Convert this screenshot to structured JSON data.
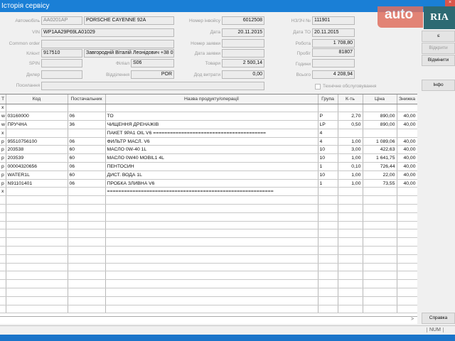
{
  "window": {
    "title": "Історія сервісу",
    "close": "×"
  },
  "form": {
    "car_label": "Автомобіль",
    "car_plate": "AA0201AP",
    "car_model": "PORSCHE CAYENNE 92A",
    "vin_label": "VIN",
    "vin": "WP1AA29P69LA01029",
    "common_order_label": "Common order",
    "common_order": "",
    "client_label": "Клієнт",
    "client_id": "917510",
    "client_name": "Завгородній Віталій Леонідович +38 0",
    "spin_label": "SPIN",
    "spin": "",
    "branch_label": "Філіал",
    "branch": "S06",
    "dealer_label": "Дилер",
    "dealer": "",
    "department_label": "Відділення",
    "department": "POR",
    "reference_label": "Посилання",
    "reference": "",
    "invoice_no_label": "Номер інвойсу",
    "invoice_no": "6012508",
    "date_label": "Дата",
    "date": "20.11.2015",
    "request_no_label": "Номер заявки",
    "request_no": "",
    "request_date_label": "Дата заявки",
    "request_date": "",
    "goods_label": "Товари",
    "goods": "2 500,14",
    "extra_costs_label": "Дод витрати",
    "extra_costs": "0,00",
    "order_no_label": "НЗ/ЗЧ №",
    "order_no": "111901",
    "to_date_label": "Дата ТО",
    "to_date": "20.11.2015",
    "labor_label": "Робота",
    "labor": "1 708,80",
    "mileage_label": "Пробіг",
    "mileage": "81807",
    "hours_label": "Години",
    "hours": "",
    "total_label": "Всього",
    "total": "4 208,94",
    "maintenance_label": "Технічне обслуговування",
    "maintenance_checked": false
  },
  "buttons": {
    "prev": "≤",
    "open": "Відкрити",
    "cancel": "Відмінити",
    "info": "Інфо",
    "help": "Справка"
  },
  "logo": {
    "auto": "auto",
    "ria": "RIA"
  },
  "table": {
    "headers": [
      "T",
      "Код",
      "Постачальник",
      "Назва продукту/операції",
      "Група",
      "К-ть",
      "Ціна",
      "Знижка"
    ],
    "rows": [
      [
        "x",
        "",
        "",
        "",
        "",
        "",
        "",
        ""
      ],
      [
        "w",
        "03160000",
        "06",
        "ТО",
        "P",
        "2,70",
        "890,00",
        "40,00"
      ],
      [
        "w",
        "ПРУЧНА",
        "36",
        "ЧИЩЕННЯ ДРЕНАЖІВ",
        "LP",
        "0,50",
        "890,00",
        "40,00"
      ],
      [
        "x",
        "",
        "",
        "ПАКЕТ 9PA1 OIL V6 ========================================",
        "4",
        "",
        "",
        ""
      ],
      [
        "p",
        "95510756100",
        "06",
        "ФИЛЬТР МАСЛ. V6",
        "4",
        "1,00",
        "1 089,06",
        "40,00"
      ],
      [
        "p",
        "203538",
        "60",
        "МАСЛО 0W-40 1L",
        "10",
        "3,00",
        "422,63",
        "40,00"
      ],
      [
        "p",
        "203539",
        "60",
        "МАСЛО 0W40 MOBIL1 4L",
        "10",
        "1,00",
        "1 641,75",
        "40,00"
      ],
      [
        "p",
        "00004320656",
        "06",
        "ПЕНТОСИН",
        "1",
        "0,10",
        "726,44",
        "40,00"
      ],
      [
        "p",
        "WATER1L",
        "60",
        "ДИСТ. ВОДА 1L",
        "10",
        "1,00",
        "22,00",
        "40,00"
      ],
      [
        "p",
        "N91101401",
        "06",
        "ПРОБКА ЗЛИВНА V6",
        "1",
        "1,00",
        "73,55",
        "40,00"
      ],
      [
        "x",
        "",
        "",
        "===========================================================",
        "",
        "",
        "",
        ""
      ]
    ]
  },
  "scroll": {
    "right_arrow": ">"
  },
  "status": {
    "num": "NUM"
  }
}
